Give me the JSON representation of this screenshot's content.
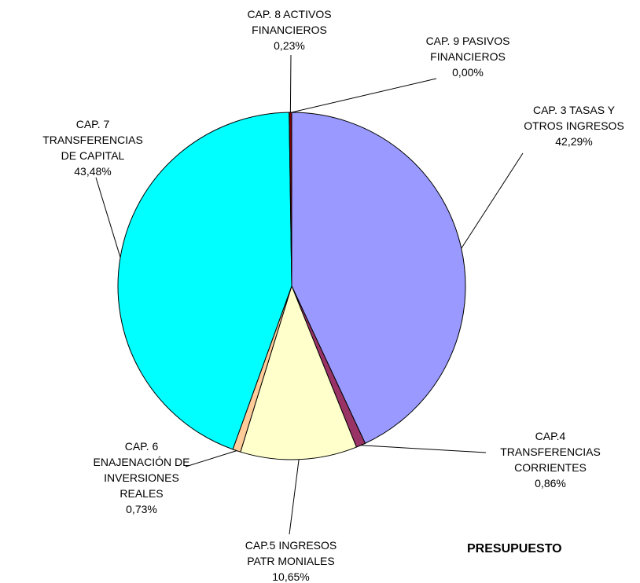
{
  "chart_data": {
    "type": "pie",
    "title": "PRESUPUESTO",
    "categories": [
      "CAP. 3 TASAS Y\nOTROS INGRESOS",
      "CAP.4\nTRANSFERENCIAS\nCORRIENTES",
      "CAP.5 INGRESOS\nPATR MONIALES",
      "CAP. 6\nENAJENACIÓN DE\nINVERSIONES\nREALES",
      "CAP. 7\nTRANSFERENCIAS\nDE CAPITAL",
      "CAP. 8 ACTIVOS\nFINANCIEROS",
      "CAP. 9 PASIVOS\nFINANCIEROS"
    ],
    "values": [
      42.29,
      0.86,
      10.65,
      0.73,
      43.48,
      0.23,
      0.0
    ],
    "value_labels": [
      "42,29%",
      "0,86%",
      "10,65%",
      "0,73%",
      "43,48%",
      "0,23%",
      "0,00%"
    ],
    "colors": [
      "#9999ff",
      "#993366",
      "#ffffcc",
      "#ffcc99",
      "#00ffff",
      "#800000",
      "#ffffff"
    ]
  }
}
